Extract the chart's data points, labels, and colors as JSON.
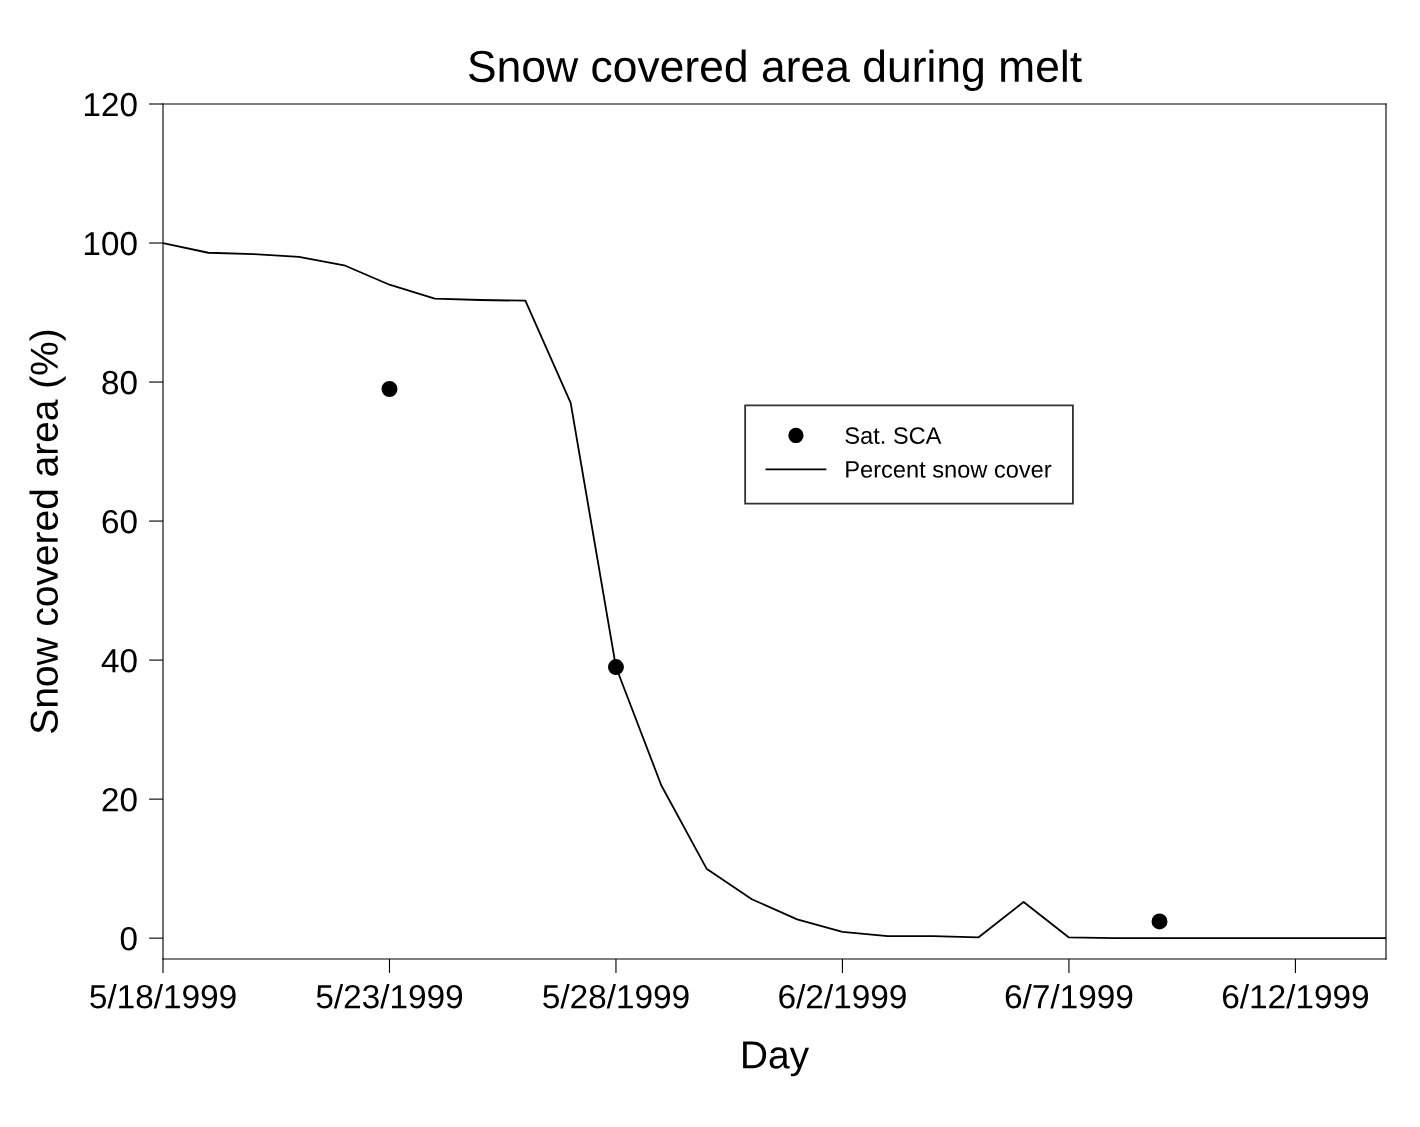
{
  "chart_data": {
    "type": "line",
    "title": "Snow covered area during melt",
    "xlabel": "Day",
    "ylabel": "Snow covered area (%)",
    "xlim": [
      "1999-05-18",
      "1999-06-14"
    ],
    "xticks": [
      {
        "value": "1999-05-18",
        "label": "5/18/1999"
      },
      {
        "value": "1999-05-23",
        "label": "5/23/1999"
      },
      {
        "value": "1999-05-28",
        "label": "5/28/1999"
      },
      {
        "value": "1999-06-02",
        "label": "6/2/1999"
      },
      {
        "value": "1999-06-07",
        "label": "6/7/1999"
      },
      {
        "value": "1999-06-12",
        "label": "6/12/1999"
      }
    ],
    "ylim": [
      -3,
      120
    ],
    "yticks": [
      0,
      20,
      40,
      60,
      80,
      100,
      120
    ],
    "grid": false,
    "legend": "center",
    "series": [
      {
        "name": "Sat. SCA",
        "type": "scatter",
        "marker": "circle",
        "color": "#000000",
        "x": [
          "1999-05-23",
          "1999-05-28",
          "1999-06-09"
        ],
        "values": [
          79,
          39,
          2.4
        ]
      },
      {
        "name": "Percent snow cover",
        "marker": "none",
        "line_style": "solid",
        "color": "#000000",
        "x": [
          "1999-05-18",
          "1999-05-19",
          "1999-05-20",
          "1999-05-21",
          "1999-05-22",
          "1999-05-23",
          "1999-05-24",
          "1999-05-25",
          "1999-05-26",
          "1999-05-27",
          "1999-05-28",
          "1999-05-29",
          "1999-05-30",
          "1999-05-31",
          "1999-06-01",
          "1999-06-02",
          "1999-06-03",
          "1999-06-04",
          "1999-06-05",
          "1999-06-06",
          "1999-06-07",
          "1999-06-08",
          "1999-06-09",
          "1999-06-10",
          "1999-06-11",
          "1999-06-12",
          "1999-06-13",
          "1999-06-14"
        ],
        "values": [
          100,
          98.6,
          98.4,
          98,
          96.8,
          94,
          92,
          91.8,
          91.7,
          77,
          39,
          22,
          10,
          5.6,
          2.7,
          0.9,
          0.3,
          0.3,
          0.1,
          5.2,
          0.1,
          0,
          0,
          0,
          0,
          0,
          0,
          0
        ]
      }
    ]
  }
}
